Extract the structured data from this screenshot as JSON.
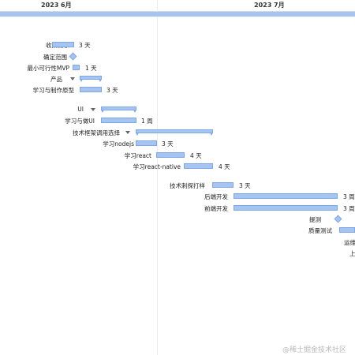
{
  "header": {
    "months": [
      "2023 6月",
      "2023 7月"
    ]
  },
  "tasks": [
    {
      "name": "收集需求",
      "duration": "3 天",
      "type": "task"
    },
    {
      "name": "确定范围",
      "duration": "",
      "type": "milestone"
    },
    {
      "name": "最小可行性MVP",
      "duration": "1 天",
      "type": "task"
    },
    {
      "name": "产品",
      "duration": "",
      "type": "group"
    },
    {
      "name": "学习与制作原型",
      "duration": "3 天",
      "type": "task"
    },
    {
      "name": "UI",
      "duration": "",
      "type": "group"
    },
    {
      "name": "学习与做UI",
      "duration": "1 周",
      "type": "task"
    },
    {
      "name": "技术框架调用选择",
      "duration": "",
      "type": "group"
    },
    {
      "name": "学习nodejs",
      "duration": "3 天",
      "type": "task"
    },
    {
      "name": "学习react",
      "duration": "4 天",
      "type": "task"
    },
    {
      "name": "学习react-native",
      "duration": "4 天",
      "type": "task"
    },
    {
      "name": "技术刺探打样",
      "duration": "3 天",
      "type": "task"
    },
    {
      "name": "后端开发",
      "duration": "3 周",
      "type": "task"
    },
    {
      "name": "前端开发",
      "duration": "3 周",
      "type": "task"
    },
    {
      "name": "提测",
      "duration": "",
      "type": "milestone"
    },
    {
      "name": "质量测试",
      "duration": "",
      "type": "task"
    },
    {
      "name": "运维",
      "duration": "",
      "type": "task"
    },
    {
      "name": "上",
      "duration": "",
      "type": "task"
    }
  ],
  "watermark": "@稀土掘金技术社区",
  "colors": {
    "bar": "#a6c4f2",
    "bar_border": "#7da7e6"
  }
}
